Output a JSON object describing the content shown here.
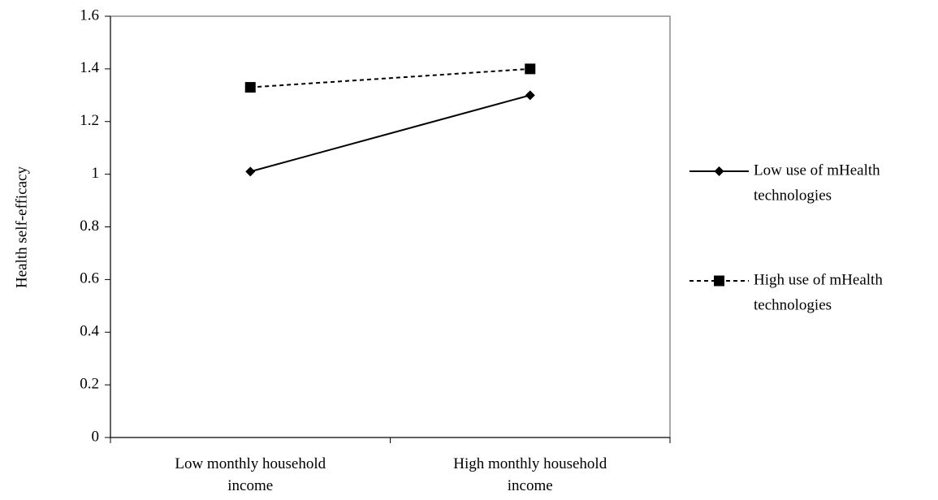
{
  "chart_data": {
    "type": "line",
    "title": "",
    "xlabel": "",
    "ylabel": "Health self-efficacy",
    "ylim": [
      0,
      1.6
    ],
    "yticks": [
      "0",
      "0.2",
      "0.4",
      "0.6",
      "0.8",
      "1",
      "1.2",
      "1.4",
      "1.6"
    ],
    "categories": [
      [
        "Low monthly household",
        "income"
      ],
      [
        "High monthly household",
        "income"
      ]
    ],
    "grid": false,
    "legend_position": "right",
    "series": [
      {
        "name": [
          "Low use of mHealth",
          "technologies"
        ],
        "values": [
          1.01,
          1.3
        ],
        "line_style": "solid",
        "marker": "diamond",
        "color": "#000000"
      },
      {
        "name": [
          "High use of mHealth",
          "technologies"
        ],
        "values": [
          1.33,
          1.4
        ],
        "line_style": "dashed",
        "marker": "square",
        "color": "#000000"
      }
    ]
  }
}
